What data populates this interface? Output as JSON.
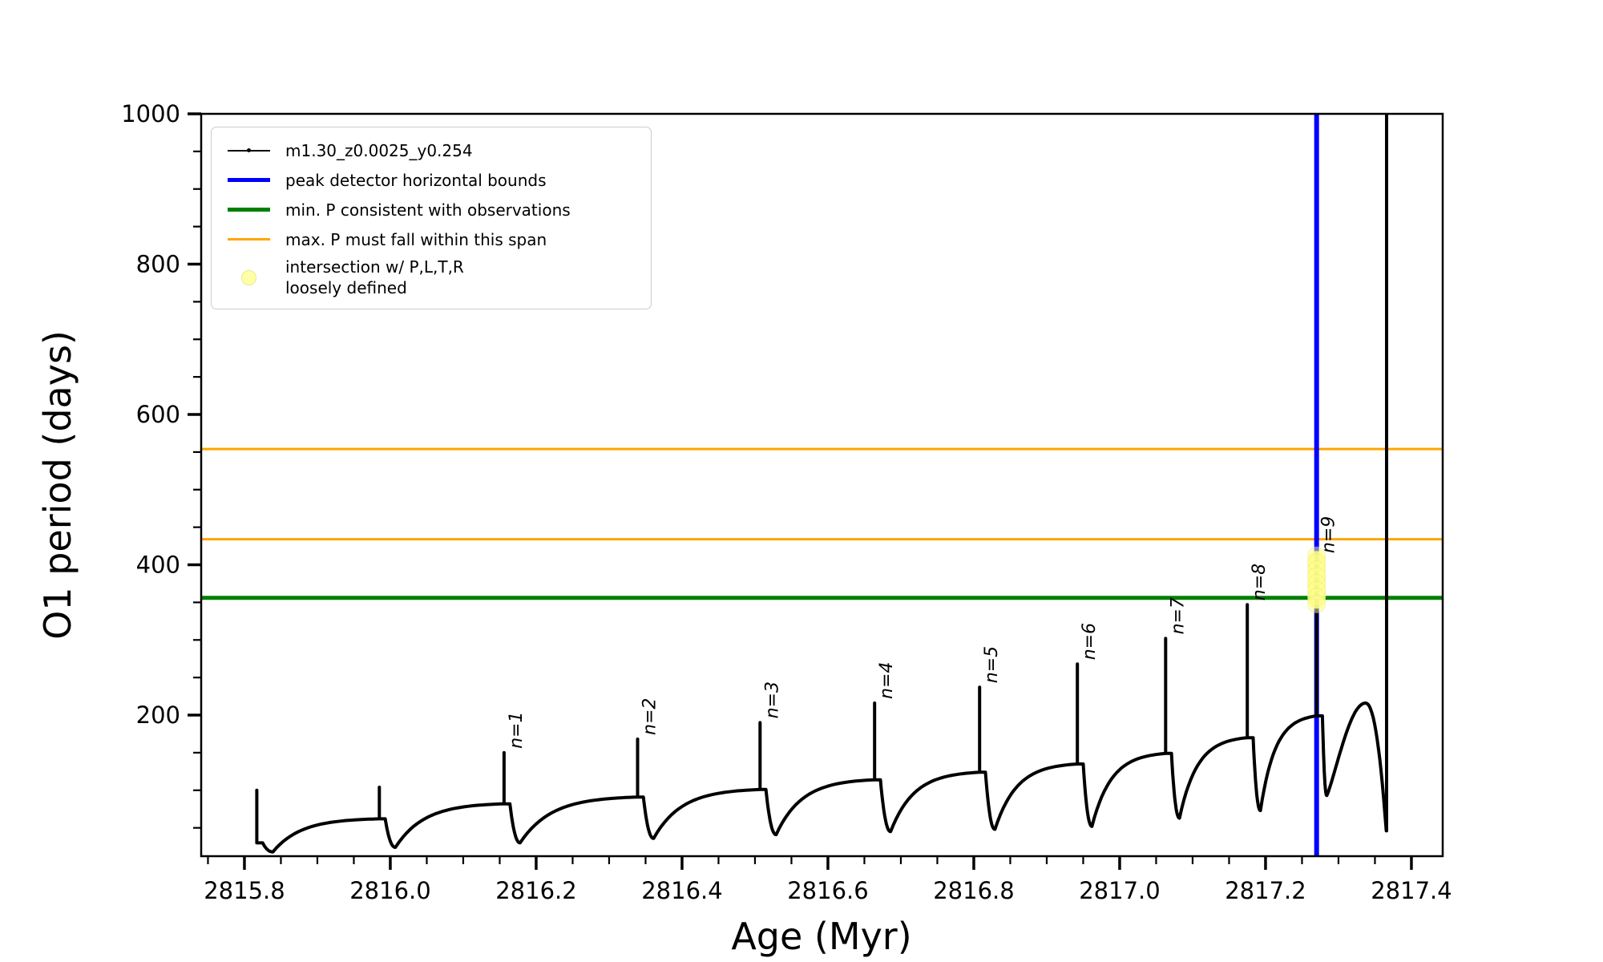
{
  "figure": {
    "background": "#ffffff"
  },
  "axes": {
    "xlabel": "Age (Myr)",
    "ylabel": "O1 period (days)",
    "xlim": [
      2815.7407,
      2817.4429
    ],
    "ylim": [
      12.3,
      1000
    ],
    "x_major_ticks": [
      2815.8,
      2816.0,
      2816.2,
      2816.4,
      2816.6,
      2816.8,
      2817.0,
      2817.2,
      2817.4
    ],
    "x_major_labels": [
      "2815.8",
      "2816.0",
      "2816.2",
      "2816.4",
      "2816.6",
      "2816.8",
      "2817.0",
      "2817.2",
      "2817.4"
    ],
    "x_minor_step": 0.05,
    "y_major_ticks": [
      200,
      400,
      600,
      800,
      1000
    ],
    "y_major_labels": [
      "200",
      "400",
      "600",
      "800",
      "1000"
    ],
    "y_minor_step": 50,
    "spine_color": "#000000",
    "grid": false
  },
  "legend": {
    "items": [
      {
        "label": "m1.30_z0.0025_y0.254",
        "type": "line-marker",
        "color": "#000000",
        "linewidth": 2
      },
      {
        "label": "peak detector horizontal bounds",
        "type": "line",
        "color": "#0000ff",
        "linewidth": 5
      },
      {
        "label": "min. P consistent with observations",
        "type": "line",
        "color": "#008000",
        "linewidth": 5
      },
      {
        "label": "max. P must fall within this span",
        "type": "line",
        "color": "#ffa500",
        "linewidth": 3
      },
      {
        "label": "intersection w/ P,L,T,R loosely defined",
        "label_line1": "intersection w/ P,L,T,R",
        "label_line2": "loosely defined",
        "type": "marker",
        "color": "#ffffa8"
      }
    ]
  },
  "chart_data": {
    "type": "line",
    "title": "",
    "xlabel": "Age (Myr)",
    "ylabel": "O1 period (days)",
    "series_name": "m1.30_z0.0025_y0.254",
    "series_color": "#000000",
    "xlim": [
      2815.74,
      2817.44
    ],
    "ylim": [
      12,
      1000
    ],
    "legend_position": "upper left",
    "cycles": [
      {
        "label": "",
        "spike_x": 2815.817,
        "peak": 100,
        "dip_x": 2815.839,
        "dip": 18,
        "plateau": 62
      },
      {
        "label": "",
        "spike_x": 2815.985,
        "peak": 104,
        "dip_x": 2816.007,
        "dip": 24,
        "plateau": 82
      },
      {
        "label": "n=1",
        "spike_x": 2816.156,
        "peak": 150,
        "dip_x": 2816.178,
        "dip": 30,
        "plateau": 91
      },
      {
        "label": "n=2",
        "spike_x": 2816.339,
        "peak": 168,
        "dip_x": 2816.361,
        "dip": 36,
        "plateau": 101
      },
      {
        "label": "n=3",
        "spike_x": 2816.507,
        "peak": 190,
        "dip_x": 2816.529,
        "dip": 41,
        "plateau": 114
      },
      {
        "label": "n=4",
        "spike_x": 2816.664,
        "peak": 216,
        "dip_x": 2816.686,
        "dip": 45,
        "plateau": 124
      },
      {
        "label": "n=5",
        "spike_x": 2816.808,
        "peak": 237,
        "dip_x": 2816.829,
        "dip": 48,
        "plateau": 135
      },
      {
        "label": "n=6",
        "spike_x": 2816.942,
        "peak": 268,
        "dip_x": 2816.962,
        "dip": 52,
        "plateau": 149
      },
      {
        "label": "n=7",
        "spike_x": 2817.063,
        "peak": 302,
        "dip_x": 2817.082,
        "dip": 63,
        "plateau": 170
      },
      {
        "label": "n=8",
        "spike_x": 2817.175,
        "peak": 347,
        "dip_x": 2817.193,
        "dip": 73,
        "plateau": 199
      },
      {
        "label": "n=9",
        "spike_x": 2817.27,
        "peak": 410,
        "dip_x": 2817.284,
        "dip": 93,
        "plateau": null
      }
    ],
    "final_segment": {
      "hump_x": 2817.337,
      "hump": 216,
      "end_x": 2817.3655,
      "end": 46,
      "spike_x": 2817.366,
      "spike_top": 1000
    },
    "start_level": 30,
    "hlines": [
      {
        "y": 554,
        "color": "#ffa500",
        "role": "max-P-upper-bound"
      },
      {
        "y": 434,
        "color": "#ffa500",
        "role": "max-P-lower-bound"
      },
      {
        "y": 356,
        "color": "#008000",
        "role": "min-P-consistent"
      }
    ],
    "vlines": [
      {
        "x": 2817.27,
        "color": "#0000ff",
        "role": "peak-detector-bound"
      }
    ],
    "intersection_region": {
      "x": 2817.27,
      "y_min": 348,
      "y_max": 412,
      "color": "#ffff8c"
    },
    "annotations": [
      {
        "text": "n=1",
        "x": 2816.156,
        "y": 150
      },
      {
        "text": "n=2",
        "x": 2816.339,
        "y": 168
      },
      {
        "text": "n=3",
        "x": 2816.507,
        "y": 190
      },
      {
        "text": "n=4",
        "x": 2816.664,
        "y": 216
      },
      {
        "text": "n=5",
        "x": 2816.808,
        "y": 237
      },
      {
        "text": "n=6",
        "x": 2816.942,
        "y": 268
      },
      {
        "text": "n=7",
        "x": 2817.063,
        "y": 302
      },
      {
        "text": "n=8",
        "x": 2817.175,
        "y": 347
      },
      {
        "text": "n=9",
        "x": 2817.27,
        "y": 410
      }
    ]
  }
}
